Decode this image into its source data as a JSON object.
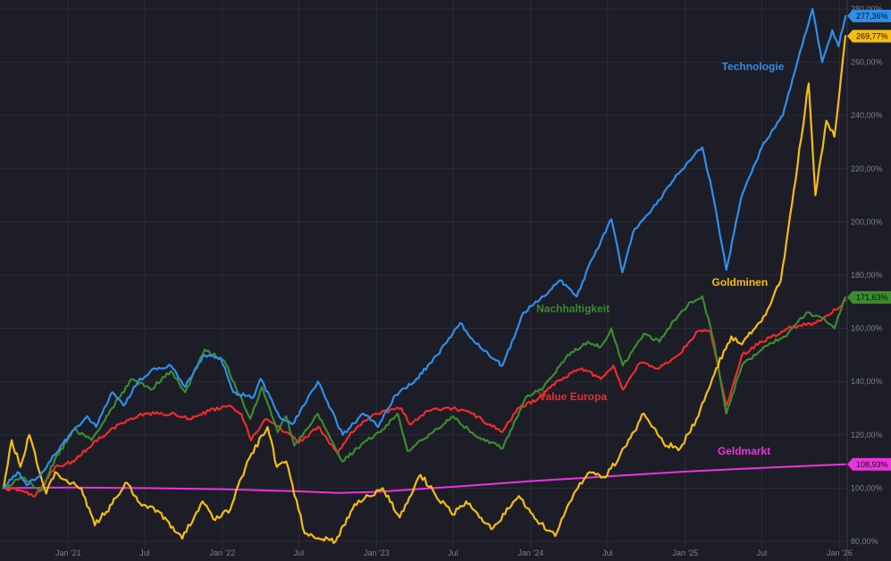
{
  "chart_data": {
    "type": "line",
    "title": "",
    "xlabel": "",
    "ylabel": "",
    "y_unit": "%",
    "ylim": [
      80,
      282
    ],
    "xlim": [
      "2020-08-01",
      "2026-01-15"
    ],
    "grid": true,
    "x_ticks": [
      {
        "date": "2021-01-01",
        "label": "Jan '21"
      },
      {
        "date": "2021-07-01",
        "label": "Jul"
      },
      {
        "date": "2022-01-01",
        "label": "Jan '22"
      },
      {
        "date": "2022-07-01",
        "label": "Jul"
      },
      {
        "date": "2023-01-01",
        "label": "Jan '23"
      },
      {
        "date": "2023-07-01",
        "label": "Jul"
      },
      {
        "date": "2024-01-01",
        "label": "Jan '24"
      },
      {
        "date": "2024-07-01",
        "label": "Jul"
      },
      {
        "date": "2025-01-01",
        "label": "Jan '25"
      },
      {
        "date": "2025-07-01",
        "label": "Jul"
      },
      {
        "date": "2026-01-01",
        "label": "Jan '26"
      }
    ],
    "y_ticks": [
      {
        "value": 80,
        "label": "80,00%"
      },
      {
        "value": 100,
        "label": "100,00%"
      },
      {
        "value": 120,
        "label": "120,00%"
      },
      {
        "value": 140,
        "label": "140,00%"
      },
      {
        "value": 160,
        "label": "160,00%"
      },
      {
        "value": 180,
        "label": "180,00%"
      },
      {
        "value": 200,
        "label": "200,00%"
      },
      {
        "value": 220,
        "label": "220,00%"
      },
      {
        "value": 240,
        "label": "240,00%"
      },
      {
        "value": 260,
        "label": "260,00%"
      },
      {
        "value": 280,
        "label": "280,00%"
      }
    ],
    "series": [
      {
        "name": "Geldmarkt",
        "color": "#ee33dd",
        "last_value_label": "108,93%",
        "badge_text_color": "#111111",
        "points": [
          [
            "2020-08-01",
            100
          ],
          [
            "2021-01-01",
            100.2
          ],
          [
            "2021-07-01",
            100
          ],
          [
            "2022-01-01",
            99.6
          ],
          [
            "2022-07-01",
            98.8
          ],
          [
            "2022-10-01",
            98.2
          ],
          [
            "2023-01-01",
            98.6
          ],
          [
            "2023-07-01",
            100.5
          ],
          [
            "2024-01-01",
            102.6
          ],
          [
            "2024-07-01",
            104.4
          ],
          [
            "2025-01-01",
            106.2
          ],
          [
            "2025-07-01",
            107.6
          ],
          [
            "2026-01-15",
            108.93
          ]
        ]
      },
      {
        "name": "Value Europa",
        "color": "#ee2b2b",
        "last_value_label": "",
        "badge_text_color": "#111111",
        "points": [
          [
            "2020-08-01",
            100
          ],
          [
            "2020-09-15",
            99
          ],
          [
            "2020-10-15",
            97
          ],
          [
            "2020-11-01",
            101
          ],
          [
            "2020-12-01",
            108
          ],
          [
            "2021-01-15",
            110
          ],
          [
            "2021-03-01",
            117
          ],
          [
            "2021-05-01",
            124
          ],
          [
            "2021-07-01",
            128
          ],
          [
            "2021-09-01",
            128
          ],
          [
            "2021-10-15",
            126
          ],
          [
            "2021-12-01",
            129
          ],
          [
            "2022-01-15",
            131
          ],
          [
            "2022-02-15",
            128
          ],
          [
            "2022-03-10",
            118
          ],
          [
            "2022-04-15",
            126
          ],
          [
            "2022-06-01",
            121
          ],
          [
            "2022-07-01",
            117
          ],
          [
            "2022-08-15",
            123
          ],
          [
            "2022-10-01",
            113
          ],
          [
            "2022-11-01",
            121
          ],
          [
            "2023-01-01",
            128
          ],
          [
            "2023-03-01",
            130
          ],
          [
            "2023-03-20",
            124
          ],
          [
            "2023-05-01",
            129
          ],
          [
            "2023-07-01",
            130
          ],
          [
            "2023-08-15",
            128
          ],
          [
            "2023-10-25",
            121
          ],
          [
            "2023-12-01",
            130
          ],
          [
            "2024-01-15",
            133
          ],
          [
            "2024-03-01",
            140
          ],
          [
            "2024-05-01",
            145
          ],
          [
            "2024-06-15",
            141
          ],
          [
            "2024-07-15",
            146
          ],
          [
            "2024-08-06",
            137
          ],
          [
            "2024-09-15",
            147
          ],
          [
            "2024-11-01",
            145
          ],
          [
            "2024-12-15",
            150
          ],
          [
            "2025-02-01",
            159
          ],
          [
            "2025-03-01",
            159
          ],
          [
            "2025-04-08",
            131
          ],
          [
            "2025-05-15",
            150
          ],
          [
            "2025-07-01",
            155
          ],
          [
            "2025-09-01",
            160
          ],
          [
            "2025-11-01",
            162
          ],
          [
            "2025-12-15",
            166
          ],
          [
            "2026-01-15",
            170.5
          ]
        ]
      },
      {
        "name": "Nachhaltigkeit",
        "color": "#3b8c2d",
        "last_value_label": "171,63%",
        "badge_text_color": "#ffffff",
        "points": [
          [
            "2020-08-01",
            100
          ],
          [
            "2020-09-15",
            104
          ],
          [
            "2020-10-30",
            99
          ],
          [
            "2020-12-01",
            111
          ],
          [
            "2021-01-15",
            122
          ],
          [
            "2021-02-25",
            118
          ],
          [
            "2021-04-15",
            130
          ],
          [
            "2021-06-01",
            141
          ],
          [
            "2021-07-15",
            137
          ],
          [
            "2021-09-01",
            144
          ],
          [
            "2021-10-05",
            136
          ],
          [
            "2021-11-20",
            152
          ],
          [
            "2022-01-05",
            148
          ],
          [
            "2022-03-08",
            126
          ],
          [
            "2022-04-05",
            138
          ],
          [
            "2022-05-12",
            121
          ],
          [
            "2022-06-01",
            127
          ],
          [
            "2022-06-20",
            116
          ],
          [
            "2022-08-15",
            128
          ],
          [
            "2022-10-12",
            110
          ],
          [
            "2022-12-01",
            117
          ],
          [
            "2023-01-15",
            122
          ],
          [
            "2023-02-20",
            128
          ],
          [
            "2023-03-15",
            114
          ],
          [
            "2023-05-15",
            121
          ],
          [
            "2023-07-01",
            127
          ],
          [
            "2023-08-20",
            120
          ],
          [
            "2023-10-27",
            115
          ],
          [
            "2023-12-20",
            134
          ],
          [
            "2024-02-01",
            138
          ],
          [
            "2024-03-28",
            150
          ],
          [
            "2024-05-15",
            155
          ],
          [
            "2024-06-15",
            153
          ],
          [
            "2024-07-10",
            160
          ],
          [
            "2024-08-06",
            146
          ],
          [
            "2024-09-25",
            158
          ],
          [
            "2024-11-01",
            155
          ],
          [
            "2024-12-05",
            163
          ],
          [
            "2025-01-15",
            170
          ],
          [
            "2025-02-10",
            172
          ],
          [
            "2025-03-10",
            155
          ],
          [
            "2025-04-08",
            128
          ],
          [
            "2025-05-15",
            146
          ],
          [
            "2025-07-01",
            152
          ],
          [
            "2025-09-01",
            158
          ],
          [
            "2025-10-15",
            166
          ],
          [
            "2025-11-20",
            164
          ],
          [
            "2025-12-20",
            160
          ],
          [
            "2026-01-15",
            171.63
          ]
        ]
      },
      {
        "name": "Goldminen",
        "color": "#f5bd10",
        "last_value_label": "269,77%",
        "badge_text_color": "#111111",
        "points": [
          [
            "2020-08-01",
            100
          ],
          [
            "2020-08-20",
            118
          ],
          [
            "2020-09-10",
            108
          ],
          [
            "2020-10-01",
            120
          ],
          [
            "2020-11-10",
            98
          ],
          [
            "2020-12-01",
            106
          ],
          [
            "2021-01-01",
            102
          ],
          [
            "2021-02-01",
            100
          ],
          [
            "2021-03-05",
            86
          ],
          [
            "2021-04-15",
            94
          ],
          [
            "2021-05-20",
            102
          ],
          [
            "2021-06-15",
            95
          ],
          [
            "2021-08-05",
            91
          ],
          [
            "2021-09-28",
            81
          ],
          [
            "2021-11-15",
            95
          ],
          [
            "2021-12-15",
            88
          ],
          [
            "2022-01-20",
            92
          ],
          [
            "2022-03-01",
            110
          ],
          [
            "2022-04-18",
            123
          ],
          [
            "2022-05-10",
            108
          ],
          [
            "2022-06-01",
            110
          ],
          [
            "2022-07-15",
            83
          ],
          [
            "2022-09-26",
            80
          ],
          [
            "2022-11-10",
            94
          ],
          [
            "2023-01-15",
            100
          ],
          [
            "2023-02-25",
            89
          ],
          [
            "2023-04-15",
            105
          ],
          [
            "2023-05-15",
            99
          ],
          [
            "2023-06-30",
            90
          ],
          [
            "2023-08-01",
            95
          ],
          [
            "2023-09-01",
            89
          ],
          [
            "2023-10-04",
            85
          ],
          [
            "2023-12-04",
            97
          ],
          [
            "2024-01-15",
            88
          ],
          [
            "2024-02-28",
            82
          ],
          [
            "2024-04-12",
            98
          ],
          [
            "2024-05-20",
            106
          ],
          [
            "2024-06-25",
            104
          ],
          [
            "2024-08-15",
            116
          ],
          [
            "2024-09-25",
            128
          ],
          [
            "2024-11-10",
            117
          ],
          [
            "2024-12-20",
            115
          ],
          [
            "2025-02-01",
            127
          ],
          [
            "2025-03-15",
            145
          ],
          [
            "2025-04-20",
            157
          ],
          [
            "2025-05-15",
            154
          ],
          [
            "2025-06-15",
            160
          ],
          [
            "2025-07-10",
            165
          ],
          [
            "2025-08-15",
            178
          ],
          [
            "2025-09-15",
            212
          ],
          [
            "2025-10-20",
            252
          ],
          [
            "2025-11-05",
            210
          ],
          [
            "2025-12-01",
            238
          ],
          [
            "2025-12-20",
            232
          ],
          [
            "2026-01-05",
            255
          ],
          [
            "2026-01-15",
            269.77
          ]
        ]
      },
      {
        "name": "Technologie",
        "color": "#2f8eea",
        "last_value_label": "277,36%",
        "badge_text_color": "#111111",
        "points": [
          [
            "2020-08-01",
            100
          ],
          [
            "2020-09-03",
            106
          ],
          [
            "2020-09-25",
            101
          ],
          [
            "2020-11-01",
            106
          ],
          [
            "2020-12-15",
            116
          ],
          [
            "2021-01-15",
            122
          ],
          [
            "2021-02-15",
            127
          ],
          [
            "2021-03-08",
            123
          ],
          [
            "2021-04-15",
            136
          ],
          [
            "2021-05-12",
            131
          ],
          [
            "2021-06-15",
            140
          ],
          [
            "2021-07-15",
            144
          ],
          [
            "2021-09-01",
            146
          ],
          [
            "2021-10-05",
            138
          ],
          [
            "2021-11-20",
            150
          ],
          [
            "2021-12-28",
            149
          ],
          [
            "2022-01-27",
            136
          ],
          [
            "2022-03-15",
            134
          ],
          [
            "2022-04-01",
            141
          ],
          [
            "2022-05-20",
            126
          ],
          [
            "2022-06-16",
            124
          ],
          [
            "2022-08-15",
            140
          ],
          [
            "2022-10-13",
            120
          ],
          [
            "2022-12-01",
            128
          ],
          [
            "2023-01-05",
            123
          ],
          [
            "2023-02-15",
            135
          ],
          [
            "2023-04-01",
            140
          ],
          [
            "2023-05-25",
            150
          ],
          [
            "2023-07-18",
            162
          ],
          [
            "2023-08-20",
            155
          ],
          [
            "2023-10-26",
            146
          ],
          [
            "2023-12-15",
            166
          ],
          [
            "2024-02-01",
            172
          ],
          [
            "2024-03-10",
            178
          ],
          [
            "2024-04-19",
            172
          ],
          [
            "2024-05-25",
            186
          ],
          [
            "2024-07-10",
            201
          ],
          [
            "2024-08-05",
            181
          ],
          [
            "2024-08-30",
            196
          ],
          [
            "2024-10-15",
            205
          ],
          [
            "2024-12-15",
            218
          ],
          [
            "2025-02-10",
            228
          ],
          [
            "2025-03-05",
            212
          ],
          [
            "2025-04-08",
            182
          ],
          [
            "2025-05-15",
            210
          ],
          [
            "2025-07-01",
            228
          ],
          [
            "2025-08-20",
            240
          ],
          [
            "2025-09-20",
            258
          ],
          [
            "2025-10-29",
            280
          ],
          [
            "2025-11-21",
            260
          ],
          [
            "2025-12-15",
            272
          ],
          [
            "2025-12-30",
            266
          ],
          [
            "2026-01-15",
            277.36
          ]
        ]
      }
    ],
    "annotations": [
      {
        "text": "Technologie",
        "series": "Technologie",
        "at": [
          "2025-06-10",
          257
        ]
      },
      {
        "text": "Goldminen",
        "series": "Goldminen",
        "at": [
          "2025-05-10",
          176
        ]
      },
      {
        "text": "Nachhaltigkeit",
        "series": "Nachhaltigkeit",
        "at": [
          "2024-04-10",
          166
        ]
      },
      {
        "text": "Value Europa",
        "series": "Value Europa",
        "at": [
          "2024-04-10",
          133
        ]
      },
      {
        "text": "Geldmarkt",
        "series": "Geldmarkt",
        "at": [
          "2025-05-20",
          112.5
        ]
      }
    ]
  }
}
